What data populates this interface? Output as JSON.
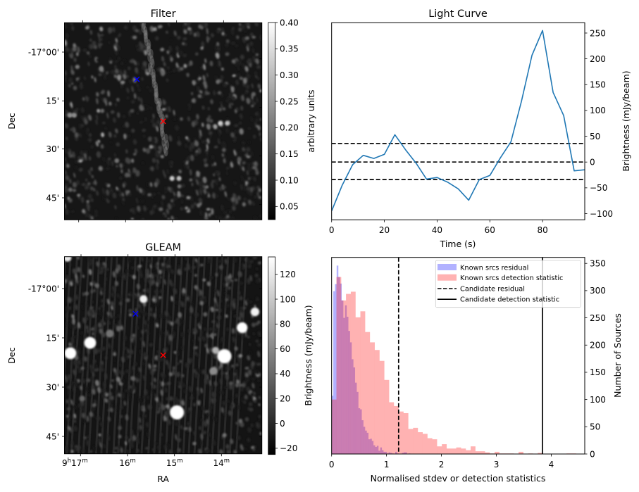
{
  "chart_data": [
    {
      "type": "heatmap",
      "id": "filter",
      "title": "Filter",
      "xlabel": "",
      "ylabel": "Dec",
      "x_ticks": [
        "",
        "",
        "",
        ""
      ],
      "y_ticks": [
        "-17°00'",
        "15'",
        "30'",
        "45'"
      ],
      "colormap": "gray",
      "colorbar": {
        "label": "arbitrary units",
        "range": [
          0.025,
          0.4
        ],
        "ticks": [
          "0.05",
          "0.10",
          "0.15",
          "0.20",
          "0.25",
          "0.30",
          "0.35",
          "0.40"
        ],
        "tick_values": [
          0.05,
          0.1,
          0.15,
          0.2,
          0.25,
          0.3,
          0.35,
          0.4
        ]
      },
      "markers": [
        {
          "name": "known-source",
          "symbol": "x",
          "color": "#0000ff",
          "fx": 0.367,
          "fy": 0.287
        },
        {
          "name": "candidate",
          "symbol": "x",
          "color": "#ff0000",
          "fx": 0.5,
          "fy": 0.5
        }
      ],
      "sources": [
        {
          "fx": 0.027,
          "fy": 0.47,
          "r": 0.012,
          "b": 0.55
        },
        {
          "fx": 0.05,
          "fy": 0.47,
          "r": 0.012,
          "b": 0.55
        },
        {
          "fx": 0.79,
          "fy": 0.51,
          "r": 0.013,
          "b": 0.8
        },
        {
          "fx": 0.825,
          "fy": 0.51,
          "r": 0.013,
          "b": 0.75
        },
        {
          "fx": 0.545,
          "fy": 0.79,
          "r": 0.013,
          "b": 0.8
        },
        {
          "fx": 0.58,
          "fy": 0.79,
          "r": 0.013,
          "b": 0.75
        },
        {
          "fx": 0.265,
          "fy": 0.7,
          "r": 0.012,
          "b": 0.45
        }
      ]
    },
    {
      "type": "line",
      "id": "light-curve",
      "title": "Light Curve",
      "xlabel": "Time (s)",
      "ylabel": "Brightness (mJy/beam)",
      "xlim": [
        0,
        96
      ],
      "ylim": [
        -112,
        270
      ],
      "x_ticks": [
        0,
        20,
        40,
        60,
        80
      ],
      "y_ticks": [
        -100,
        -50,
        0,
        50,
        100,
        150,
        200,
        250
      ],
      "y_tick_labels": [
        "−100",
        "−50",
        "0",
        "50",
        "100",
        "150",
        "200",
        "250"
      ],
      "series": [
        {
          "name": "light curve",
          "color": "#1f77b4",
          "x": [
            0,
            4,
            8,
            12,
            16,
            20,
            24,
            28,
            32,
            36,
            40,
            44,
            48,
            52,
            56,
            60,
            64,
            68,
            72,
            76,
            80,
            84,
            88,
            92,
            96
          ],
          "y": [
            -95,
            -45,
            -5,
            13,
            7,
            15,
            53,
            24,
            -2,
            -33,
            -30,
            -39,
            -52,
            -74,
            -34,
            -26,
            8,
            39,
            118,
            207,
            255,
            135,
            90,
            -17,
            -15
          ]
        }
      ],
      "hlines": [
        {
          "name": "upper-threshold",
          "y": 36,
          "style": "dashed",
          "color": "#000000"
        },
        {
          "name": "zero-level",
          "y": 0,
          "style": "dashed",
          "color": "#000000"
        },
        {
          "name": "lower-threshold",
          "y": -34,
          "style": "dashed",
          "color": "#000000"
        }
      ]
    },
    {
      "type": "heatmap",
      "id": "gleam",
      "title": "GLEAM",
      "xlabel": "RA",
      "ylabel": "Dec",
      "x_ticks": [
        "9h17m",
        "16m",
        "15m",
        "14m"
      ],
      "y_ticks": [
        "-17°00'",
        "15'",
        "30'",
        "45'"
      ],
      "colormap": "gray",
      "colorbar": {
        "label": "Brightness (mJy/beam)",
        "range": [
          -25,
          134
        ],
        "ticks": [
          "−20",
          "0",
          "20",
          "40",
          "60",
          "80",
          "100",
          "120"
        ],
        "tick_values": [
          -20,
          0,
          20,
          40,
          60,
          80,
          100,
          120
        ]
      },
      "markers": [
        {
          "name": "known-source",
          "symbol": "x",
          "color": "#0000ff",
          "fx": 0.36,
          "fy": 0.29
        },
        {
          "name": "candidate",
          "symbol": "x",
          "color": "#ff0000",
          "fx": 0.5,
          "fy": 0.5
        }
      ],
      "sources": [
        {
          "fx": 0.03,
          "fy": 0.49,
          "r": 0.03,
          "b": 1.0
        },
        {
          "fx": 0.13,
          "fy": 0.437,
          "r": 0.03,
          "b": 1.0
        },
        {
          "fx": 0.4,
          "fy": 0.215,
          "r": 0.02,
          "b": 0.95
        },
        {
          "fx": 0.57,
          "fy": 0.79,
          "r": 0.036,
          "b": 1.0
        },
        {
          "fx": 0.81,
          "fy": 0.505,
          "r": 0.036,
          "b": 1.0
        },
        {
          "fx": 0.9,
          "fy": 0.36,
          "r": 0.027,
          "b": 1.0
        },
        {
          "fx": 0.965,
          "fy": 0.28,
          "r": 0.022,
          "b": 0.95
        },
        {
          "fx": 0.765,
          "fy": 0.475,
          "r": 0.018,
          "b": 0.7
        },
        {
          "fx": 0.755,
          "fy": 0.58,
          "r": 0.02,
          "b": 0.55
        },
        {
          "fx": 0.23,
          "fy": 0.39,
          "r": 0.02,
          "b": 0.45
        },
        {
          "fx": 0.015,
          "fy": 0.005,
          "r": 0.02,
          "b": 0.9
        },
        {
          "fx": 0.09,
          "fy": 0.72,
          "r": 0.015,
          "b": 0.4
        }
      ]
    },
    {
      "type": "bar",
      "subtype": "histogram",
      "id": "histogram",
      "title": "",
      "xlabel": "Normalised stdev or detection statistics",
      "ylabel": "Number of Sources",
      "xlim": [
        0,
        4.61
      ],
      "ylim": [
        0,
        361
      ],
      "x_ticks": [
        0,
        1,
        2,
        3,
        4
      ],
      "y_ticks": [
        0,
        50,
        100,
        150,
        200,
        250,
        300,
        350
      ],
      "legend": {
        "position": "upper-right",
        "entries": [
          {
            "label": "Known srcs residual",
            "kind": "patch",
            "color": "#0000ff",
            "alpha": 0.3
          },
          {
            "label": "Known srcs detection statistic",
            "kind": "patch",
            "color": "#ff0000",
            "alpha": 0.3
          },
          {
            "label": "Candidate residual",
            "kind": "line",
            "style": "dashed",
            "color": "#000000"
          },
          {
            "label": "Candidate detection statistic",
            "kind": "line",
            "style": "solid",
            "color": "#000000"
          }
        ]
      },
      "series": [
        {
          "name": "Known srcs residual",
          "color": "#0000ff",
          "alpha": 0.3,
          "bin_start": 0.0,
          "bin_width": 0.0305,
          "counts": [
            107,
            299,
            312,
            346,
            325,
            313,
            282,
            250,
            273,
            252,
            226,
            205,
            174,
            159,
            131,
            114,
            84,
            82,
            62,
            50,
            43,
            39,
            27,
            28,
            24,
            16,
            13,
            15,
            6,
            12,
            7,
            4,
            4,
            1,
            3,
            2,
            1,
            0,
            4,
            1,
            0,
            0,
            2,
            3,
            3,
            0,
            1
          ]
        },
        {
          "name": "Known srcs detection statistic",
          "color": "#ff0000",
          "alpha": 0.3,
          "bin_start": 0.0,
          "bin_width": 0.0873,
          "counts": [
            100,
            325,
            282,
            294,
            298,
            251,
            262,
            224,
            205,
            191,
            171,
            136,
            95,
            88,
            78,
            75,
            46,
            48,
            40,
            37,
            29,
            27,
            14,
            18,
            10,
            10,
            12,
            10,
            7,
            14,
            5,
            5,
            3,
            1,
            4,
            1,
            1,
            1,
            0,
            4,
            0,
            1,
            0,
            2,
            0,
            0,
            0,
            0,
            0,
            1,
            1
          ]
        }
      ],
      "vlines": [
        {
          "name": "Candidate residual",
          "x": 1.22,
          "style": "dashed",
          "color": "#000000"
        },
        {
          "name": "Candidate detection statistic",
          "x": 3.84,
          "style": "solid",
          "color": "#000000"
        }
      ]
    }
  ]
}
